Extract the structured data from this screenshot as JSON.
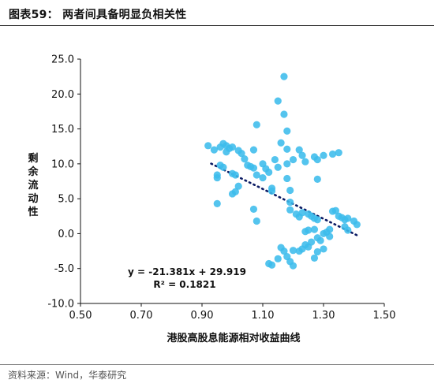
{
  "figure": {
    "title": "图表59： 两者间具备明显负相关性",
    "source": "资料来源：Wind，华泰研究"
  },
  "colors": {
    "points": "#3cbcec",
    "trendline": "#0b1a63",
    "axis": "#111111"
  },
  "chart_data": {
    "type": "scatter",
    "xlabel": "港股高股息能源相对收益曲线",
    "ylabel": "剩余流动性",
    "xlim": [
      0.5,
      1.5
    ],
    "ylim": [
      -10.0,
      25.0
    ],
    "xticks": [
      "0.50",
      "0.70",
      "0.90",
      "1.10",
      "1.30",
      "1.50"
    ],
    "yticks": [
      "25.0",
      "20.0",
      "15.0",
      "10.0",
      "5.0",
      "0.0",
      "-5.0",
      "-10.0"
    ],
    "annotation": {
      "equation": "y = -21.381x + 29.919",
      "r2": "R² = 0.1821"
    },
    "trendline": {
      "slope": -21.381,
      "intercept": 29.919,
      "x_range": [
        0.93,
        1.41
      ]
    },
    "points": [
      [
        0.92,
        12.6
      ],
      [
        0.94,
        12.0
      ],
      [
        0.95,
        8.4
      ],
      [
        0.95,
        8.0
      ],
      [
        0.96,
        12.4
      ],
      [
        0.97,
        12.9
      ],
      [
        0.98,
        12.6
      ],
      [
        0.98,
        11.7
      ],
      [
        0.99,
        12.2
      ],
      [
        1.0,
        12.4
      ],
      [
        0.96,
        9.8
      ],
      [
        0.97,
        9.5
      ],
      [
        1.0,
        8.6
      ],
      [
        1.01,
        8.4
      ],
      [
        1.02,
        11.9
      ],
      [
        1.03,
        11.5
      ],
      [
        1.04,
        10.7
      ],
      [
        1.05,
        9.8
      ],
      [
        1.06,
        9.6
      ],
      [
        1.07,
        9.4
      ],
      [
        1.08,
        8.4
      ],
      [
        1.02,
        6.8
      ],
      [
        1.01,
        6.0
      ],
      [
        1.0,
        5.7
      ],
      [
        0.95,
        4.3
      ],
      [
        1.07,
        12.0
      ],
      [
        1.08,
        15.6
      ],
      [
        1.1,
        10.0
      ],
      [
        1.11,
        9.3
      ],
      [
        1.12,
        8.8
      ],
      [
        1.07,
        3.5
      ],
      [
        1.08,
        1.8
      ],
      [
        1.1,
        8.0
      ],
      [
        1.13,
        6.5
      ],
      [
        1.13,
        6.1
      ],
      [
        1.14,
        10.6
      ],
      [
        1.15,
        9.5
      ],
      [
        1.16,
        13.0
      ],
      [
        1.17,
        17.1
      ],
      [
        1.18,
        14.7
      ],
      [
        1.15,
        19.0
      ],
      [
        1.17,
        22.5
      ],
      [
        1.18,
        12.1
      ],
      [
        1.18,
        10.0
      ],
      [
        1.2,
        10.6
      ],
      [
        1.22,
        12.0
      ],
      [
        1.23,
        11.2
      ],
      [
        1.24,
        10.3
      ],
      [
        1.27,
        11.0
      ],
      [
        1.28,
        10.6
      ],
      [
        1.3,
        11.2
      ],
      [
        1.33,
        11.4
      ],
      [
        1.35,
        11.6
      ],
      [
        1.28,
        7.8
      ],
      [
        1.18,
        7.9
      ],
      [
        1.19,
        6.2
      ],
      [
        1.19,
        4.5
      ],
      [
        1.19,
        3.4
      ],
      [
        1.21,
        2.8
      ],
      [
        1.22,
        2.4
      ],
      [
        1.23,
        3.0
      ],
      [
        1.25,
        2.8
      ],
      [
        1.26,
        2.5
      ],
      [
        1.27,
        2.2
      ],
      [
        1.28,
        2.0
      ],
      [
        1.24,
        0.3
      ],
      [
        1.25,
        0.5
      ],
      [
        1.27,
        0.6
      ],
      [
        1.3,
        0.0
      ],
      [
        1.32,
        0.6
      ],
      [
        1.33,
        3.2
      ],
      [
        1.34,
        3.3
      ],
      [
        1.35,
        2.5
      ],
      [
        1.36,
        2.3
      ],
      [
        1.37,
        2.0
      ],
      [
        1.38,
        2.2
      ],
      [
        1.4,
        1.8
      ],
      [
        1.41,
        1.3
      ],
      [
        1.37,
        1.0
      ],
      [
        1.38,
        0.5
      ],
      [
        1.12,
        -4.3
      ],
      [
        1.13,
        -4.5
      ],
      [
        1.15,
        -3.6
      ],
      [
        1.16,
        -2.0
      ],
      [
        1.17,
        -2.5
      ],
      [
        1.18,
        -3.3
      ],
      [
        1.19,
        -4.0
      ],
      [
        1.2,
        -4.6
      ],
      [
        1.2,
        -2.4
      ],
      [
        1.22,
        -2.5
      ],
      [
        1.23,
        -2.2
      ],
      [
        1.24,
        -1.6
      ],
      [
        1.25,
        -1.9
      ],
      [
        1.26,
        -1.2
      ],
      [
        1.27,
        -3.5
      ],
      [
        1.28,
        -2.6
      ],
      [
        1.28,
        -0.6
      ],
      [
        1.29,
        -1.0
      ],
      [
        1.3,
        -2.2
      ],
      [
        1.31,
        0.2
      ],
      [
        1.32,
        -0.4
      ]
    ]
  }
}
